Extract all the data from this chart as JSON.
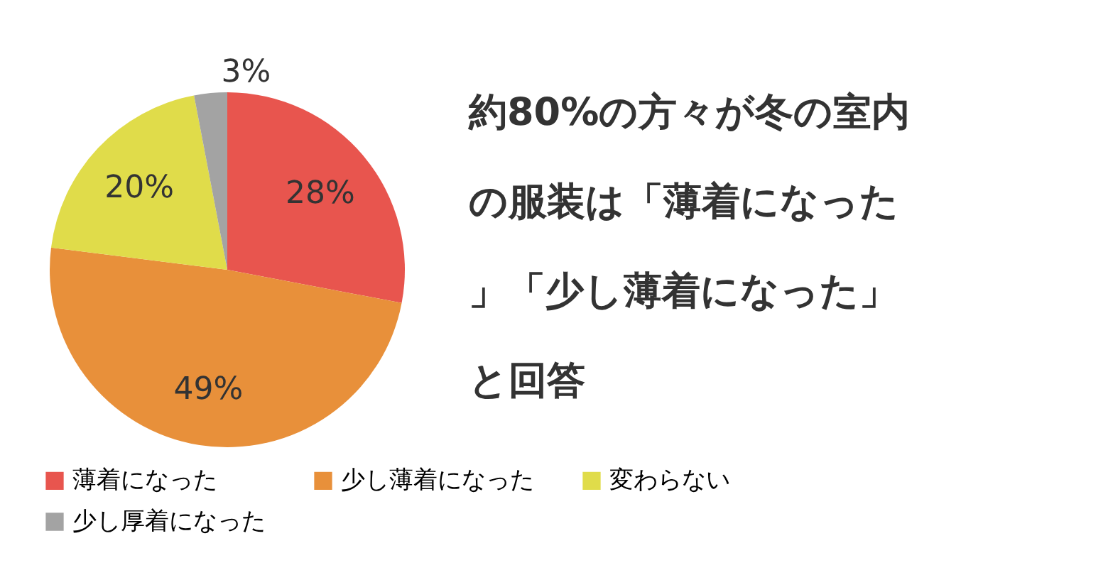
{
  "chart_data": {
    "type": "pie",
    "title": "約80%の方々が冬の室内の服装は「薄着になった」「少し薄着になった」と回答",
    "categories": [
      "薄着になった",
      "少し薄着になった",
      "変わらない",
      "少し厚着になった"
    ],
    "values": [
      28,
      49,
      20,
      3
    ],
    "colors": [
      "#e8554e",
      "#e8903a",
      "#e0dc4a",
      "#a3a3a3"
    ],
    "value_labels": [
      "28%",
      "49%",
      "20%",
      "3%"
    ],
    "legend": "bottom"
  }
}
